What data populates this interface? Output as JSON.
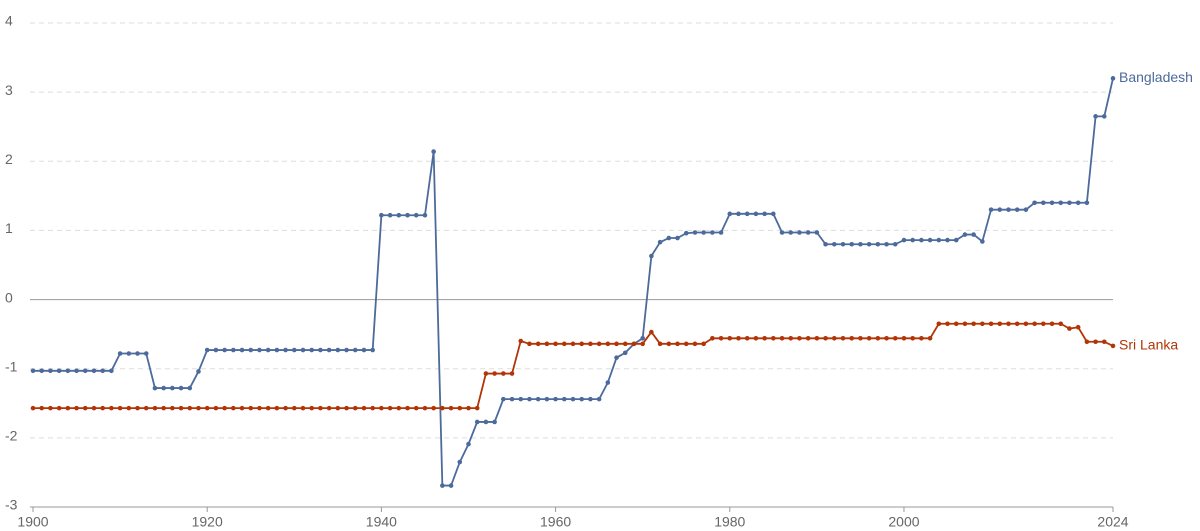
{
  "chart_data": {
    "type": "line",
    "x": [
      1900,
      1901,
      1902,
      1903,
      1904,
      1905,
      1906,
      1907,
      1908,
      1909,
      1910,
      1911,
      1912,
      1913,
      1914,
      1915,
      1916,
      1917,
      1918,
      1919,
      1920,
      1921,
      1922,
      1923,
      1924,
      1925,
      1926,
      1927,
      1928,
      1929,
      1930,
      1931,
      1932,
      1933,
      1934,
      1935,
      1936,
      1937,
      1938,
      1939,
      1940,
      1941,
      1942,
      1943,
      1944,
      1945,
      1946,
      1947,
      1948,
      1949,
      1950,
      1951,
      1952,
      1953,
      1954,
      1955,
      1956,
      1957,
      1958,
      1959,
      1960,
      1961,
      1962,
      1963,
      1964,
      1965,
      1966,
      1967,
      1968,
      1969,
      1970,
      1971,
      1972,
      1973,
      1974,
      1975,
      1976,
      1977,
      1978,
      1979,
      1980,
      1981,
      1982,
      1983,
      1984,
      1985,
      1986,
      1987,
      1988,
      1989,
      1990,
      1991,
      1992,
      1993,
      1994,
      1995,
      1996,
      1997,
      1998,
      1999,
      2000,
      2001,
      2002,
      2003,
      2004,
      2005,
      2006,
      2007,
      2008,
      2009,
      2010,
      2011,
      2012,
      2013,
      2014,
      2015,
      2016,
      2017,
      2018,
      2019,
      2020,
      2021,
      2022,
      2023,
      2024
    ],
    "series": [
      {
        "name": "Bangladesh",
        "color": "#4c6a9c",
        "values": [
          -1.03,
          -1.03,
          -1.03,
          -1.03,
          -1.03,
          -1.03,
          -1.03,
          -1.03,
          -1.03,
          -1.03,
          -0.78,
          -0.78,
          -0.78,
          -0.78,
          -1.28,
          -1.28,
          -1.28,
          -1.28,
          -1.28,
          -1.04,
          -0.73,
          -0.73,
          -0.73,
          -0.73,
          -0.73,
          -0.73,
          -0.73,
          -0.73,
          -0.73,
          -0.73,
          -0.73,
          -0.73,
          -0.73,
          -0.73,
          -0.73,
          -0.73,
          -0.73,
          -0.73,
          -0.73,
          -0.73,
          1.22,
          1.22,
          1.22,
          1.22,
          1.22,
          1.22,
          2.14,
          -2.69,
          -2.69,
          -2.35,
          -2.09,
          -1.77,
          -1.77,
          -1.77,
          -1.44,
          -1.44,
          -1.44,
          -1.44,
          -1.44,
          -1.44,
          -1.44,
          -1.44,
          -1.44,
          -1.44,
          -1.44,
          -1.44,
          -1.2,
          -0.84,
          -0.77,
          -0.64,
          -0.56,
          0.63,
          0.83,
          0.89,
          0.89,
          0.96,
          0.97,
          0.97,
          0.97,
          0.97,
          1.24,
          1.24,
          1.24,
          1.24,
          1.24,
          1.24,
          0.97,
          0.97,
          0.97,
          0.97,
          0.97,
          0.8,
          0.8,
          0.8,
          0.8,
          0.8,
          0.8,
          0.8,
          0.8,
          0.8,
          0.86,
          0.86,
          0.86,
          0.86,
          0.86,
          0.86,
          0.86,
          0.94,
          0.94,
          0.84,
          1.3,
          1.3,
          1.3,
          1.3,
          1.3,
          1.4,
          1.4,
          1.4,
          1.4,
          1.4,
          1.4,
          1.4,
          2.65,
          2.65,
          3.2
        ]
      },
      {
        "name": "Sri Lanka",
        "color": "#b13507",
        "values": [
          -1.57,
          -1.57,
          -1.57,
          -1.57,
          -1.57,
          -1.57,
          -1.57,
          -1.57,
          -1.57,
          -1.57,
          -1.57,
          -1.57,
          -1.57,
          -1.57,
          -1.57,
          -1.57,
          -1.57,
          -1.57,
          -1.57,
          -1.57,
          -1.57,
          -1.57,
          -1.57,
          -1.57,
          -1.57,
          -1.57,
          -1.57,
          -1.57,
          -1.57,
          -1.57,
          -1.57,
          -1.57,
          -1.57,
          -1.57,
          -1.57,
          -1.57,
          -1.57,
          -1.57,
          -1.57,
          -1.57,
          -1.57,
          -1.57,
          -1.57,
          -1.57,
          -1.57,
          -1.57,
          -1.57,
          -1.57,
          -1.57,
          -1.57,
          -1.57,
          -1.57,
          -1.07,
          -1.07,
          -1.07,
          -1.07,
          -0.6,
          -0.64,
          -0.64,
          -0.64,
          -0.64,
          -0.64,
          -0.64,
          -0.64,
          -0.64,
          -0.64,
          -0.64,
          -0.64,
          -0.64,
          -0.64,
          -0.64,
          -0.47,
          -0.64,
          -0.64,
          -0.64,
          -0.64,
          -0.64,
          -0.64,
          -0.56,
          -0.56,
          -0.56,
          -0.56,
          -0.56,
          -0.56,
          -0.56,
          -0.56,
          -0.56,
          -0.56,
          -0.56,
          -0.56,
          -0.56,
          -0.56,
          -0.56,
          -0.56,
          -0.56,
          -0.56,
          -0.56,
          -0.56,
          -0.56,
          -0.56,
          -0.56,
          -0.56,
          -0.56,
          -0.56,
          -0.35,
          -0.35,
          -0.35,
          -0.35,
          -0.35,
          -0.35,
          -0.35,
          -0.35,
          -0.35,
          -0.35,
          -0.35,
          -0.35,
          -0.35,
          -0.35,
          -0.35,
          -0.42,
          -0.4,
          -0.61,
          -0.61,
          -0.61,
          -0.67
        ]
      }
    ],
    "xlim": [
      1900,
      2024
    ],
    "xticks": [
      1900,
      1920,
      1940,
      1960,
      1980,
      2000,
      2024
    ],
    "ylim": [
      -3,
      4
    ],
    "yticks": [
      -3,
      -2,
      -1,
      0,
      1,
      2,
      3,
      4
    ],
    "grid": true
  }
}
